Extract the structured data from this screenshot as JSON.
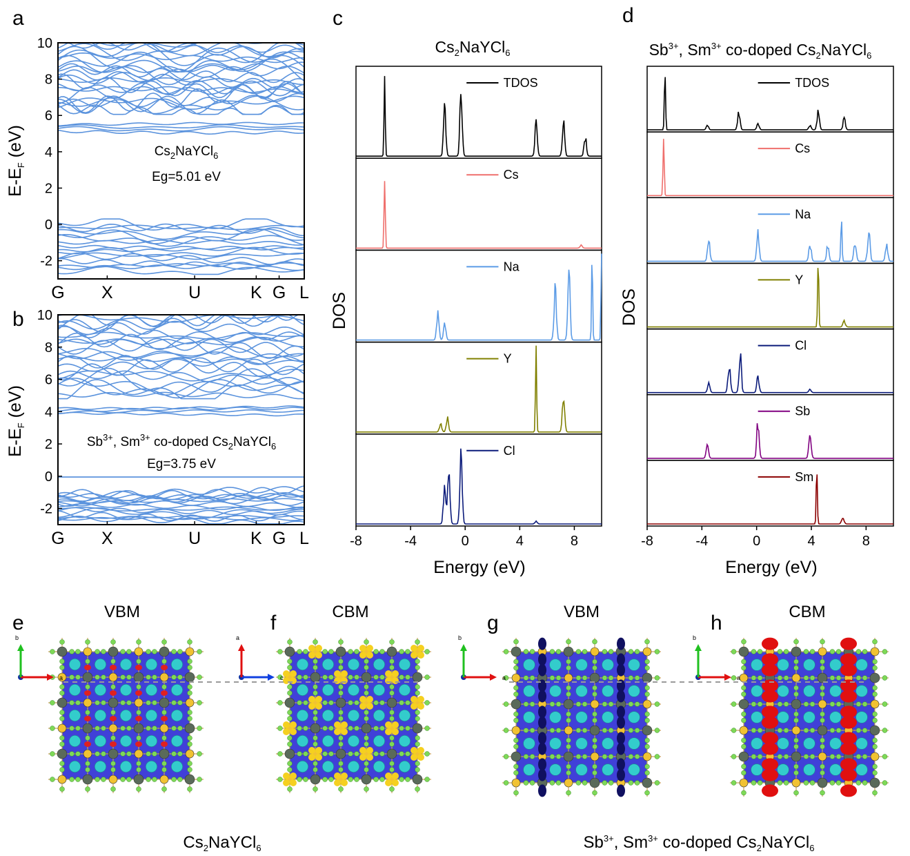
{
  "figure": {
    "panels": {
      "a": "a",
      "b": "b",
      "c": "c",
      "d": "d",
      "e": "e",
      "f": "f",
      "g": "g",
      "h": "h"
    }
  },
  "colors": {
    "band": "#5b93dd",
    "TDOS": "#000000",
    "Cs": "#ef6f6c",
    "Na": "#5b9be6",
    "Y": "#808000",
    "Cl": "#0a1a7a",
    "Sb": "#800080",
    "Sm": "#8b0000",
    "isosurface_plane": "#4040d8",
    "cs_atom": "#33cccc",
    "cl_atom": "#7ed957",
    "axis_a": "#e01010",
    "axis_b": "#20c020",
    "axis_c": "#1040e0"
  },
  "band_a": {
    "ylabel": "E-E_F (eV)",
    "material": "Cs2NaYCl6",
    "gap": "Eg=5.01 eV",
    "kpoints": [
      "G",
      "X",
      "U",
      "K",
      "G",
      "L"
    ],
    "yticks": [
      "-2",
      "0",
      "2",
      "4",
      "6",
      "8",
      "10"
    ]
  },
  "band_b": {
    "ylabel": "E-E_F (eV)",
    "material": "Sb3+, Sm3+ co-doped Cs2NaYCl6",
    "gap": "Eg=3.75 eV",
    "kpoints": [
      "G",
      "X",
      "U",
      "K",
      "G",
      "L"
    ],
    "yticks": [
      "-2",
      "0",
      "2",
      "4",
      "6",
      "8",
      "10"
    ]
  },
  "dos_c": {
    "title": "Cs2NaYCl6",
    "ylabel": "DOS",
    "xlabel": "Energy (eV)",
    "xticks": [
      "-8",
      "-4",
      "0",
      "4",
      "8"
    ],
    "legend": [
      "TDOS",
      "Cs",
      "Na",
      "Y",
      "Cl"
    ]
  },
  "dos_d": {
    "title": "Sb3+, Sm3+ co-doped Cs2NaYCl6",
    "ylabel": "DOS",
    "xlabel": "Energy (eV)",
    "xticks": [
      "-8",
      "-4",
      "0",
      "4",
      "8"
    ],
    "legend": [
      "TDOS",
      "Cs",
      "Na",
      "Y",
      "Cl",
      "Sb",
      "Sm"
    ]
  },
  "structures": {
    "e": {
      "title": "VBM",
      "axis_h": "a",
      "axis_v": "b"
    },
    "f": {
      "title": "CBM",
      "axis_h": "c",
      "axis_v": "a"
    },
    "g": {
      "title": "VBM",
      "axis_h": "a",
      "axis_v": "b"
    },
    "h": {
      "title": "CBM",
      "axis_h": "a",
      "axis_v": "b"
    },
    "caption_left": "Cs2NaYCl6",
    "caption_right": "Sb3+, Sm3+ co-doped Cs2NaYCl6"
  },
  "chart_data": [
    {
      "type": "line",
      "panel": "a",
      "title": "",
      "xlabel": "",
      "ylabel": "E-EF (eV)",
      "ylim": [
        -3,
        10
      ],
      "x_ticks": [
        "G",
        "X",
        "U",
        "K",
        "G",
        "L"
      ],
      "y_ticks": [
        -2,
        0,
        2,
        4,
        6,
        8,
        10
      ],
      "valence_band_range_eV": [
        -2.6,
        0
      ],
      "conduction_band_range_eV": [
        5.01,
        10
      ],
      "band_gap_eV": 5.01,
      "annotations": [
        "Cs2NaYCl6",
        "Eg=5.01 eV"
      ]
    },
    {
      "type": "line",
      "panel": "b",
      "title": "",
      "xlabel": "",
      "ylabel": "E-EF (eV)",
      "ylim": [
        -3,
        10
      ],
      "x_ticks": [
        "G",
        "X",
        "U",
        "K",
        "G",
        "L"
      ],
      "y_ticks": [
        -2,
        0,
        2,
        4,
        6,
        8,
        10
      ],
      "valence_band_range_eV": [
        -2.8,
        -0.9
      ],
      "impurity_band_eV": -0.05,
      "conduction_band_range_eV": [
        3.75,
        10
      ],
      "band_gap_eV": 3.75,
      "annotations": [
        "Sb3+, Sm3+ co-doped Cs2NaYCl6",
        "Eg=3.75 eV"
      ]
    },
    {
      "type": "line",
      "panel": "c",
      "title": "Cs2NaYCl6",
      "xlabel": "Energy (eV)",
      "ylabel": "DOS",
      "xlim": [
        -8,
        10
      ],
      "x_ticks": [
        -8,
        -4,
        0,
        4,
        8
      ],
      "series": [
        {
          "name": "TDOS",
          "peaks": [
            [
              -5.9,
              1.0
            ],
            [
              -1.5,
              0.55
            ],
            [
              -0.3,
              0.7
            ],
            [
              5.2,
              0.38
            ],
            [
              7.2,
              0.38
            ],
            [
              8.8,
              0.22
            ]
          ]
        },
        {
          "name": "Cs",
          "peaks": [
            [
              -5.9,
              1.0
            ],
            [
              8.5,
              0.03
            ]
          ]
        },
        {
          "name": "Na",
          "peaks": [
            [
              -2.0,
              0.35
            ],
            [
              -1.5,
              0.2
            ],
            [
              6.6,
              0.68
            ],
            [
              7.6,
              0.75
            ],
            [
              9.3,
              0.83
            ],
            [
              10.0,
              1.0
            ]
          ]
        },
        {
          "name": "Y",
          "peaks": [
            [
              -1.8,
              0.1
            ],
            [
              -1.3,
              0.15
            ],
            [
              5.2,
              1.0
            ],
            [
              7.2,
              0.45
            ]
          ]
        },
        {
          "name": "Cl",
          "peaks": [
            [
              -1.5,
              0.5
            ],
            [
              -1.2,
              0.7
            ],
            [
              -0.3,
              0.75
            ],
            [
              5.2,
              0.03
            ]
          ]
        }
      ]
    },
    {
      "type": "line",
      "panel": "d",
      "title": "Sb3+, Sm3+ co-doped Cs2NaYCl6",
      "xlabel": "Energy (eV)",
      "ylabel": "DOS",
      "xlim": [
        -8,
        10
      ],
      "x_ticks": [
        -8,
        -4,
        0,
        4,
        8
      ],
      "series": [
        {
          "name": "TDOS",
          "peaks": [
            [
              -6.7,
              1.0
            ],
            [
              -3.6,
              0.08
            ],
            [
              -1.3,
              0.3
            ],
            [
              0.1,
              0.12
            ],
            [
              3.9,
              0.08
            ],
            [
              4.5,
              0.3
            ],
            [
              6.4,
              0.18
            ]
          ]
        },
        {
          "name": "Cs",
          "peaks": [
            [
              -6.8,
              1.0
            ]
          ]
        },
        {
          "name": "Na",
          "peaks": [
            [
              -3.5,
              0.35
            ],
            [
              0.1,
              0.5
            ],
            [
              3.9,
              0.3
            ],
            [
              5.2,
              0.25
            ],
            [
              6.2,
              0.9
            ],
            [
              7.2,
              0.35
            ],
            [
              8.2,
              0.55
            ],
            [
              9.5,
              0.3
            ]
          ]
        },
        {
          "name": "Y",
          "peaks": [
            [
              4.5,
              1.0
            ],
            [
              6.4,
              0.1
            ]
          ]
        },
        {
          "name": "Cl",
          "peaks": [
            [
              -3.5,
              0.15
            ],
            [
              -2.0,
              0.45
            ],
            [
              -1.2,
              0.6
            ],
            [
              0.1,
              0.25
            ],
            [
              3.9,
              0.05
            ]
          ]
        },
        {
          "name": "Sb",
          "peaks": [
            [
              -3.6,
              0.2
            ],
            [
              0.1,
              0.6
            ],
            [
              3.9,
              0.45
            ]
          ]
        },
        {
          "name": "Sm",
          "peaks": [
            [
              4.4,
              1.0
            ],
            [
              6.3,
              0.12
            ]
          ]
        }
      ]
    }
  ]
}
